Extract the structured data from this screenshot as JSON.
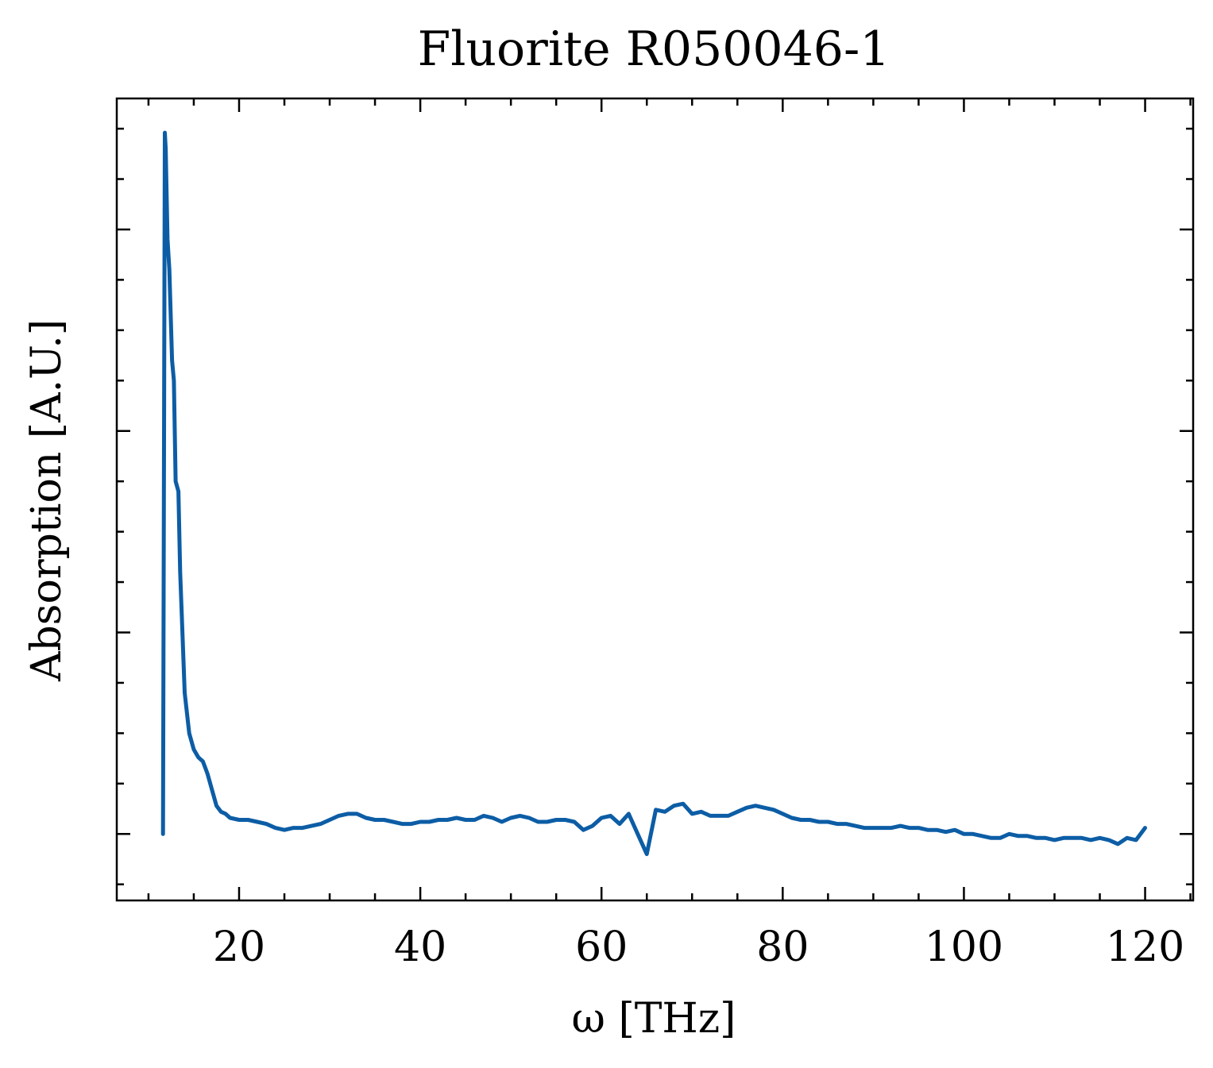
{
  "chart_data": {
    "type": "line",
    "title": "Fluorite R050046-1",
    "xlabel": "ω [THz]",
    "ylabel": "Absorption [A.U.]",
    "xlim": [
      6.5,
      125.3
    ],
    "ylim": [
      -0.33,
      3.65
    ],
    "x_ticks": [
      20,
      40,
      60,
      80,
      100,
      120
    ],
    "x_tick_labels": [
      "20",
      "40",
      "60",
      "80",
      "100",
      "120"
    ],
    "x_minor_step": 5,
    "y_ticks": [
      0,
      1,
      2,
      3
    ],
    "y_minor_step": 0.25,
    "y_tick_labels_shown": false,
    "grid": false,
    "ticks_direction": "in",
    "series": [
      {
        "color": "#0C5DA5",
        "x": [
          11.6,
          11.8,
          11.9,
          12.1,
          12.3,
          12.6,
          12.8,
          13.0,
          13.3,
          13.5,
          14.0,
          14.5,
          15.0,
          15.5,
          16.0,
          16.5,
          17.0,
          17.5,
          18.0,
          18.5,
          19.0,
          20.0,
          21.0,
          22.0,
          23.0,
          24.0,
          25.0,
          26.0,
          27.0,
          28.0,
          29.0,
          30.0,
          31.0,
          32.0,
          33.0,
          34.0,
          35.0,
          36.0,
          37.0,
          38.0,
          39.0,
          40.0,
          41.0,
          42.0,
          43.0,
          44.0,
          45.0,
          46.0,
          47.0,
          48.0,
          49.0,
          50.0,
          51.0,
          52.0,
          53.0,
          54.0,
          55.0,
          56.0,
          57.0,
          58.0,
          59.0,
          60.0,
          61.0,
          62.0,
          63.0,
          64.0,
          65.0,
          66.0,
          67.0,
          68.0,
          69.0,
          70.0,
          71.0,
          72.0,
          73.0,
          74.0,
          75.0,
          76.0,
          77.0,
          78.0,
          79.0,
          80.0,
          81.0,
          82.0,
          83.0,
          84.0,
          85.0,
          86.0,
          87.0,
          88.0,
          89.0,
          90.0,
          91.0,
          92.0,
          93.0,
          94.0,
          95.0,
          96.0,
          97.0,
          98.0,
          99.0,
          100.0,
          101.0,
          102.0,
          103.0,
          104.0,
          105.0,
          106.0,
          107.0,
          108.0,
          109.0,
          110.0,
          111.0,
          112.0,
          113.0,
          114.0,
          115.0,
          116.0,
          117.0,
          118.0,
          119.0,
          120.0
        ],
        "y": [
          0.0,
          3.48,
          3.4,
          2.95,
          2.8,
          2.35,
          2.25,
          1.75,
          1.7,
          1.3,
          0.7,
          0.5,
          0.42,
          0.38,
          0.36,
          0.3,
          0.22,
          0.14,
          0.11,
          0.1,
          0.08,
          0.07,
          0.07,
          0.06,
          0.05,
          0.03,
          0.02,
          0.03,
          0.03,
          0.04,
          0.05,
          0.07,
          0.09,
          0.1,
          0.1,
          0.08,
          0.07,
          0.07,
          0.06,
          0.05,
          0.05,
          0.06,
          0.06,
          0.07,
          0.07,
          0.08,
          0.07,
          0.07,
          0.09,
          0.08,
          0.06,
          0.08,
          0.09,
          0.08,
          0.06,
          0.06,
          0.07,
          0.07,
          0.06,
          0.02,
          0.04,
          0.08,
          0.09,
          0.05,
          0.1,
          0.0,
          -0.1,
          0.12,
          0.11,
          0.14,
          0.15,
          0.1,
          0.11,
          0.09,
          0.09,
          0.09,
          0.11,
          0.13,
          0.14,
          0.13,
          0.12,
          0.1,
          0.08,
          0.07,
          0.07,
          0.06,
          0.06,
          0.05,
          0.05,
          0.04,
          0.03,
          0.03,
          0.03,
          0.03,
          0.04,
          0.03,
          0.03,
          0.02,
          0.02,
          0.01,
          0.02,
          0.0,
          0.0,
          -0.01,
          -0.02,
          -0.02,
          0.0,
          -0.01,
          -0.01,
          -0.02,
          -0.02,
          -0.03,
          -0.02,
          -0.02,
          -0.02,
          -0.03,
          -0.02,
          -0.03,
          -0.05,
          -0.02,
          -0.03,
          0.03
        ]
      }
    ]
  }
}
